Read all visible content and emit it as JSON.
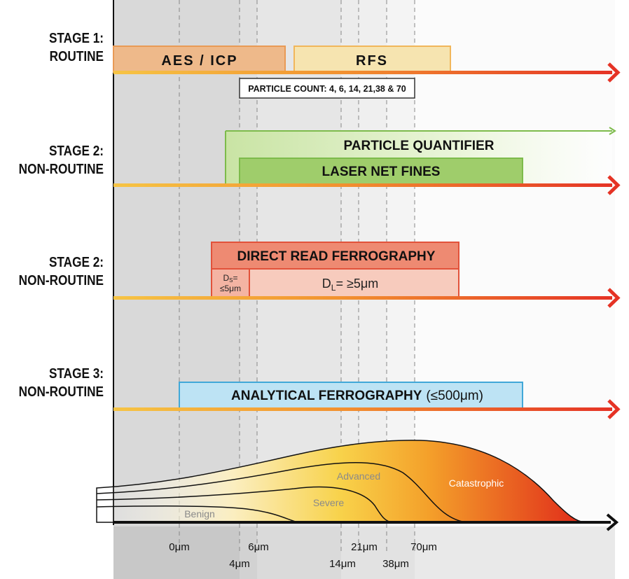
{
  "stages": [
    {
      "line1": "STAGE 1:",
      "line2": "ROUTINE"
    },
    {
      "line1": "STAGE 2:",
      "line2": "NON-ROUTINE"
    },
    {
      "line1": "STAGE 2:",
      "line2": "NON-ROUTINE"
    },
    {
      "line1": "STAGE 3:",
      "line2": "NON-ROUTINE"
    }
  ],
  "bars": {
    "aes_icp": "AES / ICP",
    "rfs": "RFS",
    "particle_count": "PARTICLE COUNT: 4, 6, 14, 21,38 & 70",
    "particle_quantifier": "PARTICLE QUANTIFIER",
    "laser_net_fines": "LASER NET FINES",
    "direct_read": "DIRECT READ FERROGRAPHY",
    "ds_main": "D",
    "ds_sub": "S",
    "ds_eq": "=",
    "ds_value": "≤5μm",
    "dl_main": "D",
    "dl_sub": "L",
    "dl_value": "= ≥5μm",
    "analytical": "ANALYTICAL FERROGRAPHY",
    "analytical_range": "(≤500μm)"
  },
  "wear_modes": {
    "benign": "Benign",
    "severe": "Severe",
    "advanced": "Advanced",
    "catastrophic": "Catastrophic"
  },
  "particle_sizes": [
    "0μm",
    "4μm",
    "6μm",
    "14μm",
    "21μm",
    "38μm",
    "70μm"
  ],
  "colors": {
    "aes_fill": "#eeb98a",
    "rfs_fill": "#f6e4b0",
    "green_border": "#7dbb4b",
    "green_fill": "#9fcd6b",
    "red_border": "#e2523a",
    "red_fill": "#ee8a72",
    "blue_border": "#41a8d8",
    "blue_fill": "#bde3f4",
    "arrow_red": "#e53325"
  }
}
